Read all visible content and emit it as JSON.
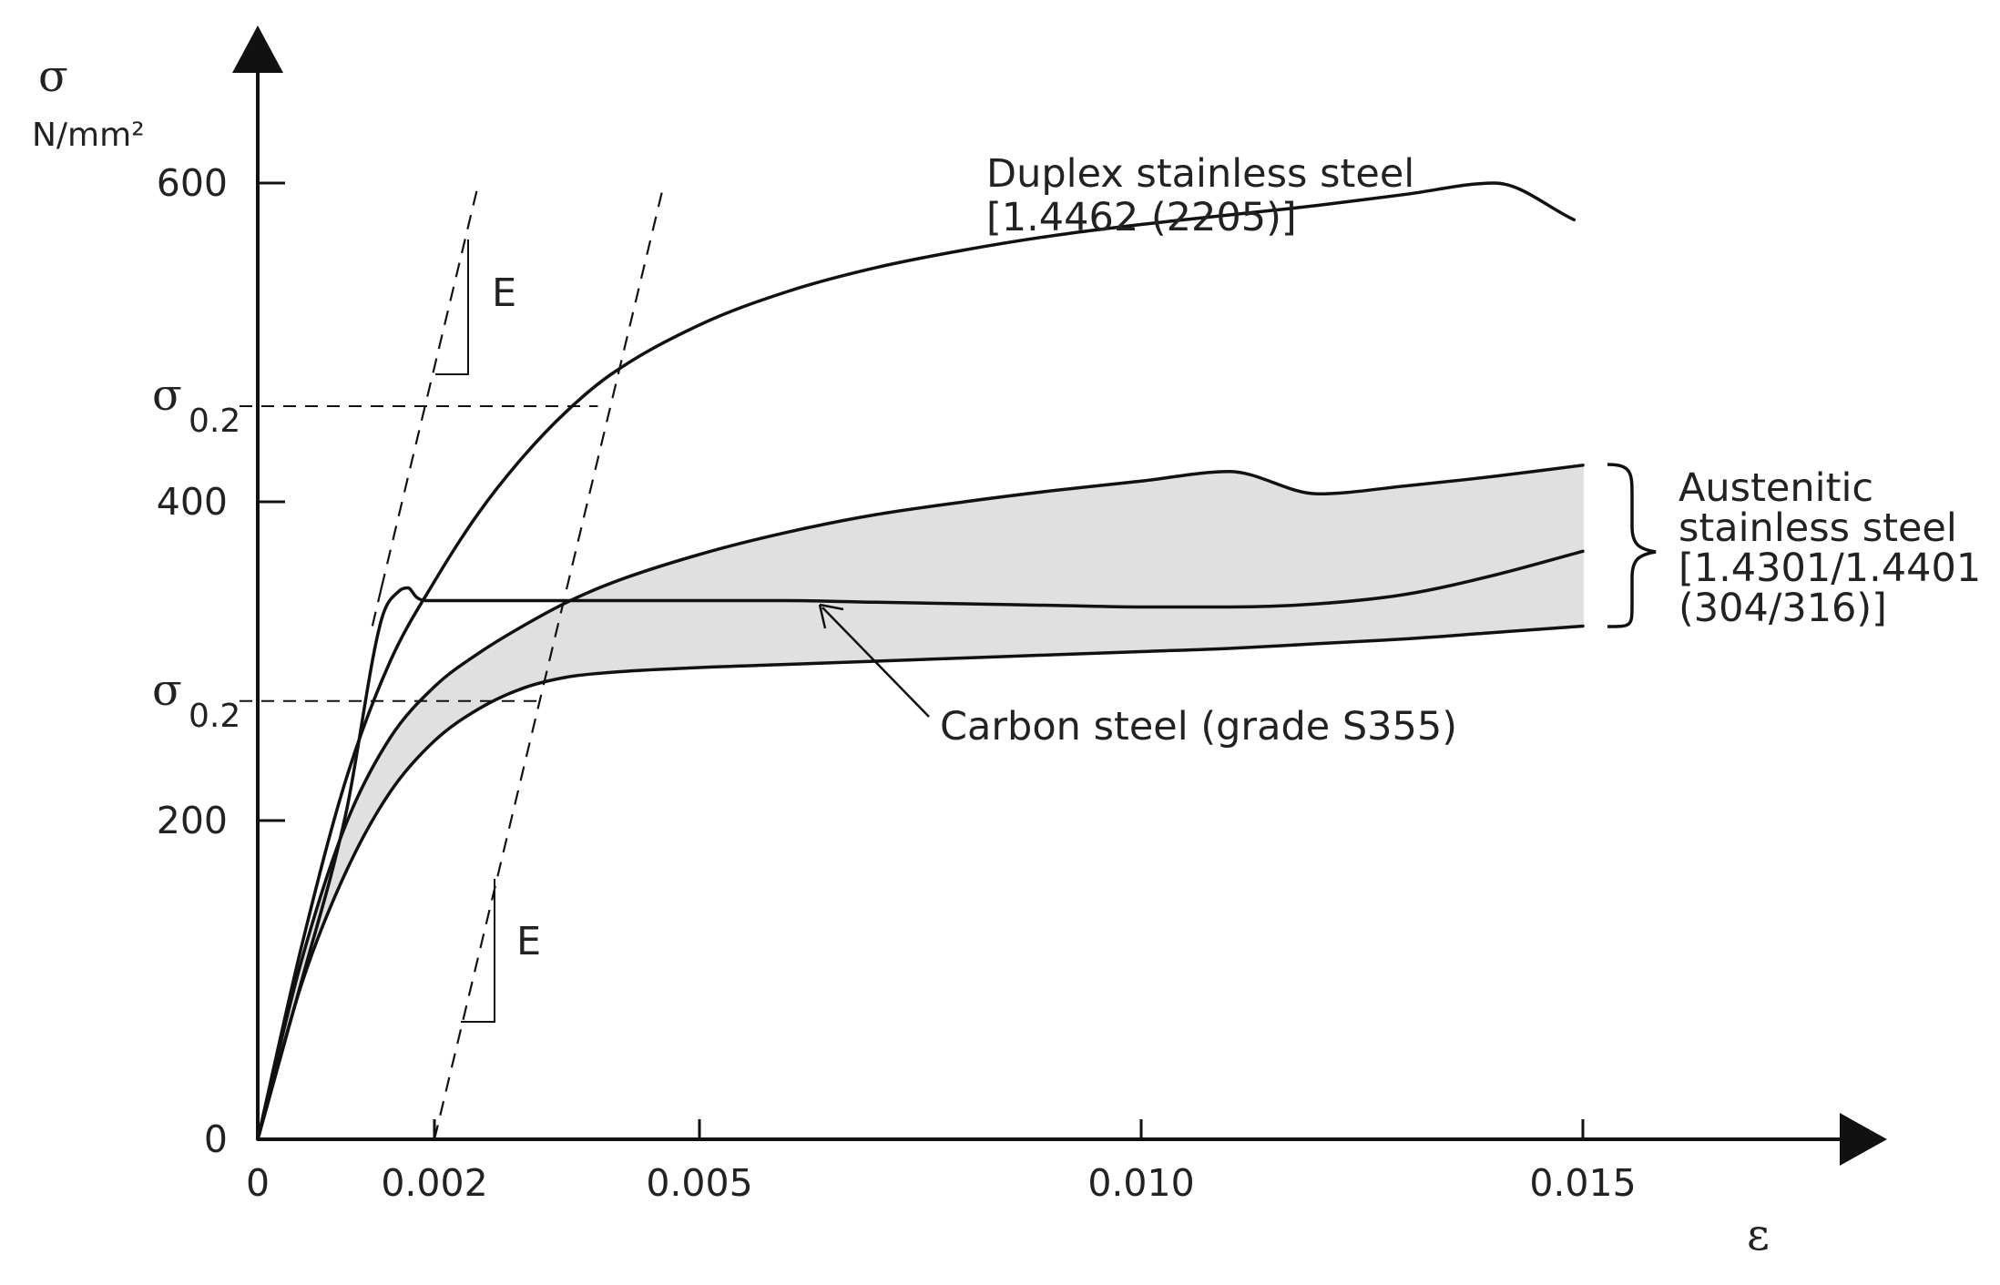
{
  "chart_data": {
    "type": "line",
    "title": "",
    "xlabel": "ε",
    "ylabel": "σ",
    "yunit": "N/mm²",
    "xlim": [
      0,
      0.018
    ],
    "ylim": [
      0,
      700
    ],
    "x_ticks": [
      {
        "value": 0,
        "label": "0"
      },
      {
        "value": 0.002,
        "label": "0.002"
      },
      {
        "value": 0.005,
        "label": "0.005"
      },
      {
        "value": 0.01,
        "label": "0.010"
      },
      {
        "value": 0.015,
        "label": "0.015"
      }
    ],
    "y_ticks": [
      {
        "value": 0,
        "label": "0"
      },
      {
        "value": 200,
        "label": "200"
      },
      {
        "value": 400,
        "label": "400"
      },
      {
        "value": 600,
        "label": "600"
      }
    ],
    "sigma_levels": [
      {
        "value": 460,
        "label_main": "σ",
        "label_sub": "0.2"
      },
      {
        "value": 275,
        "label_main": "σ",
        "label_sub": "0.2"
      }
    ],
    "series": [
      {
        "name": "Duplex stainless steel [1.4462 (2205)]",
        "x": [
          0,
          0.0005,
          0.001,
          0.0015,
          0.002,
          0.0025,
          0.003,
          0.0035,
          0.004,
          0.005,
          0.006,
          0.007,
          0.008,
          0.009,
          0.01,
          0.011,
          0.012,
          0.013,
          0.014,
          0.0149
        ],
        "y": [
          0,
          122,
          226,
          300,
          350,
          393,
          428,
          457,
          480,
          511,
          532,
          547,
          558,
          567,
          574,
          580,
          586,
          593,
          600,
          577
        ]
      },
      {
        "name": "Carbon steel (grade S355)",
        "x": [
          0,
          0.0005,
          0.001,
          0.0014,
          0.0016,
          0.0017,
          0.0018,
          0.0019,
          0.002,
          0.003,
          0.004,
          0.005,
          0.006,
          0.007,
          0.008,
          0.009,
          0.01,
          0.011,
          0.012,
          0.013,
          0.014,
          0.015
        ],
        "y": [
          0,
          100,
          205,
          326,
          344,
          346,
          340,
          338,
          338,
          338,
          338,
          338,
          338,
          337,
          336,
          335,
          334,
          334,
          336,
          342,
          354,
          369
        ]
      },
      {
        "name": "Austenitic stainless steel upper bound",
        "x": [
          0,
          0.0005,
          0.001,
          0.0015,
          0.002,
          0.0025,
          0.003,
          0.0035,
          0.004,
          0.005,
          0.006,
          0.007,
          0.008,
          0.009,
          0.01,
          0.011,
          0.012,
          0.013,
          0.014,
          0.015
        ],
        "y": [
          0,
          113,
          198,
          252,
          284,
          305,
          322,
          337,
          349,
          367,
          381,
          392,
          400,
          407,
          413,
          419,
          405,
          410,
          416,
          423
        ]
      },
      {
        "name": "Austenitic stainless steel lower bound",
        "x": [
          0,
          0.0005,
          0.001,
          0.0015,
          0.002,
          0.0025,
          0.003,
          0.0035,
          0.004,
          0.005,
          0.006,
          0.007,
          0.008,
          0.009,
          0.01,
          0.011,
          0.012,
          0.013,
          0.014,
          0.015
        ],
        "y": [
          0,
          98,
          168,
          218,
          250,
          270,
          283,
          290,
          293,
          296,
          298,
          300,
          302,
          304,
          306,
          308,
          311,
          314,
          318,
          322
        ]
      }
    ],
    "offset_lines": [
      {
        "name": "elastic-modulus-line-origin",
        "x": [
          0.0014,
          0.0025
        ],
        "y": [
          346,
          600
        ],
        "label": "E"
      },
      {
        "name": "elastic-modulus-line-offset",
        "x": [
          0.002,
          0.0046
        ],
        "y": [
          0,
          600
        ],
        "label": "E"
      }
    ],
    "annotations": {
      "duplex": [
        "Duplex stainless steel",
        "[1.4462 (2205)]"
      ],
      "austenitic": [
        "Austenitic",
        "stainless steel",
        "[1.4301/1.4401",
        "(304/316)]"
      ],
      "carbon": "Carbon steel (grade S355)",
      "e_label": "E"
    },
    "colors": {
      "line": "#111111",
      "band": "#e0e0e0",
      "text": "#222222"
    },
    "grid": false,
    "legend": "none"
  }
}
